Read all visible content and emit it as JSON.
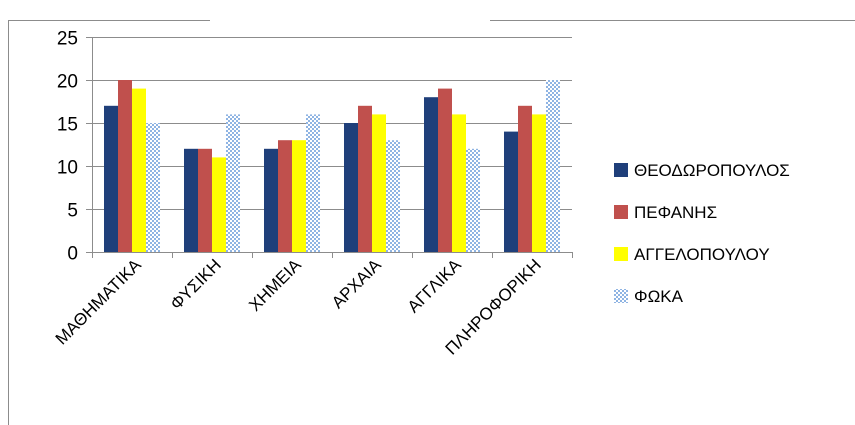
{
  "chart_data": {
    "type": "bar",
    "categories": [
      "ΜΑΘΗΜΑΤΙΚΑ",
      "ΦΥΣΙΚΗ",
      "ΧΗΜΕΙΑ",
      "ΑΡΧΑΙΑ",
      "ΑΓΓΛΙΚΑ",
      "ΠΛΗΡΟΦΟΡΙΚΗ"
    ],
    "series": [
      {
        "name": "ΘΕΟΔΩΡΟΠΟΥΛΟΣ",
        "color": "#1f3f7a",
        "pattern": "solid",
        "values": [
          17,
          12,
          12,
          15,
          18,
          14
        ]
      },
      {
        "name": "ΠΕΦΑΝΗΣ",
        "color": "#c0504d",
        "pattern": "solid",
        "values": [
          20,
          12,
          13,
          17,
          19,
          17
        ]
      },
      {
        "name": "ΑΓΓΕΛΟΠΟΥΛΟΥ",
        "color": "#ffff00",
        "pattern": "solid",
        "values": [
          19,
          11,
          13,
          16,
          16,
          16
        ]
      },
      {
        "name": "ΦΩΚΑ",
        "color": "#9dc3e6",
        "pattern": "dotted",
        "values": [
          15,
          16,
          16,
          13,
          12,
          20
        ]
      }
    ],
    "ylim": [
      0,
      25
    ],
    "yticks": [
      0,
      5,
      10,
      15,
      20,
      25
    ],
    "grid": true,
    "legend": "right"
  }
}
